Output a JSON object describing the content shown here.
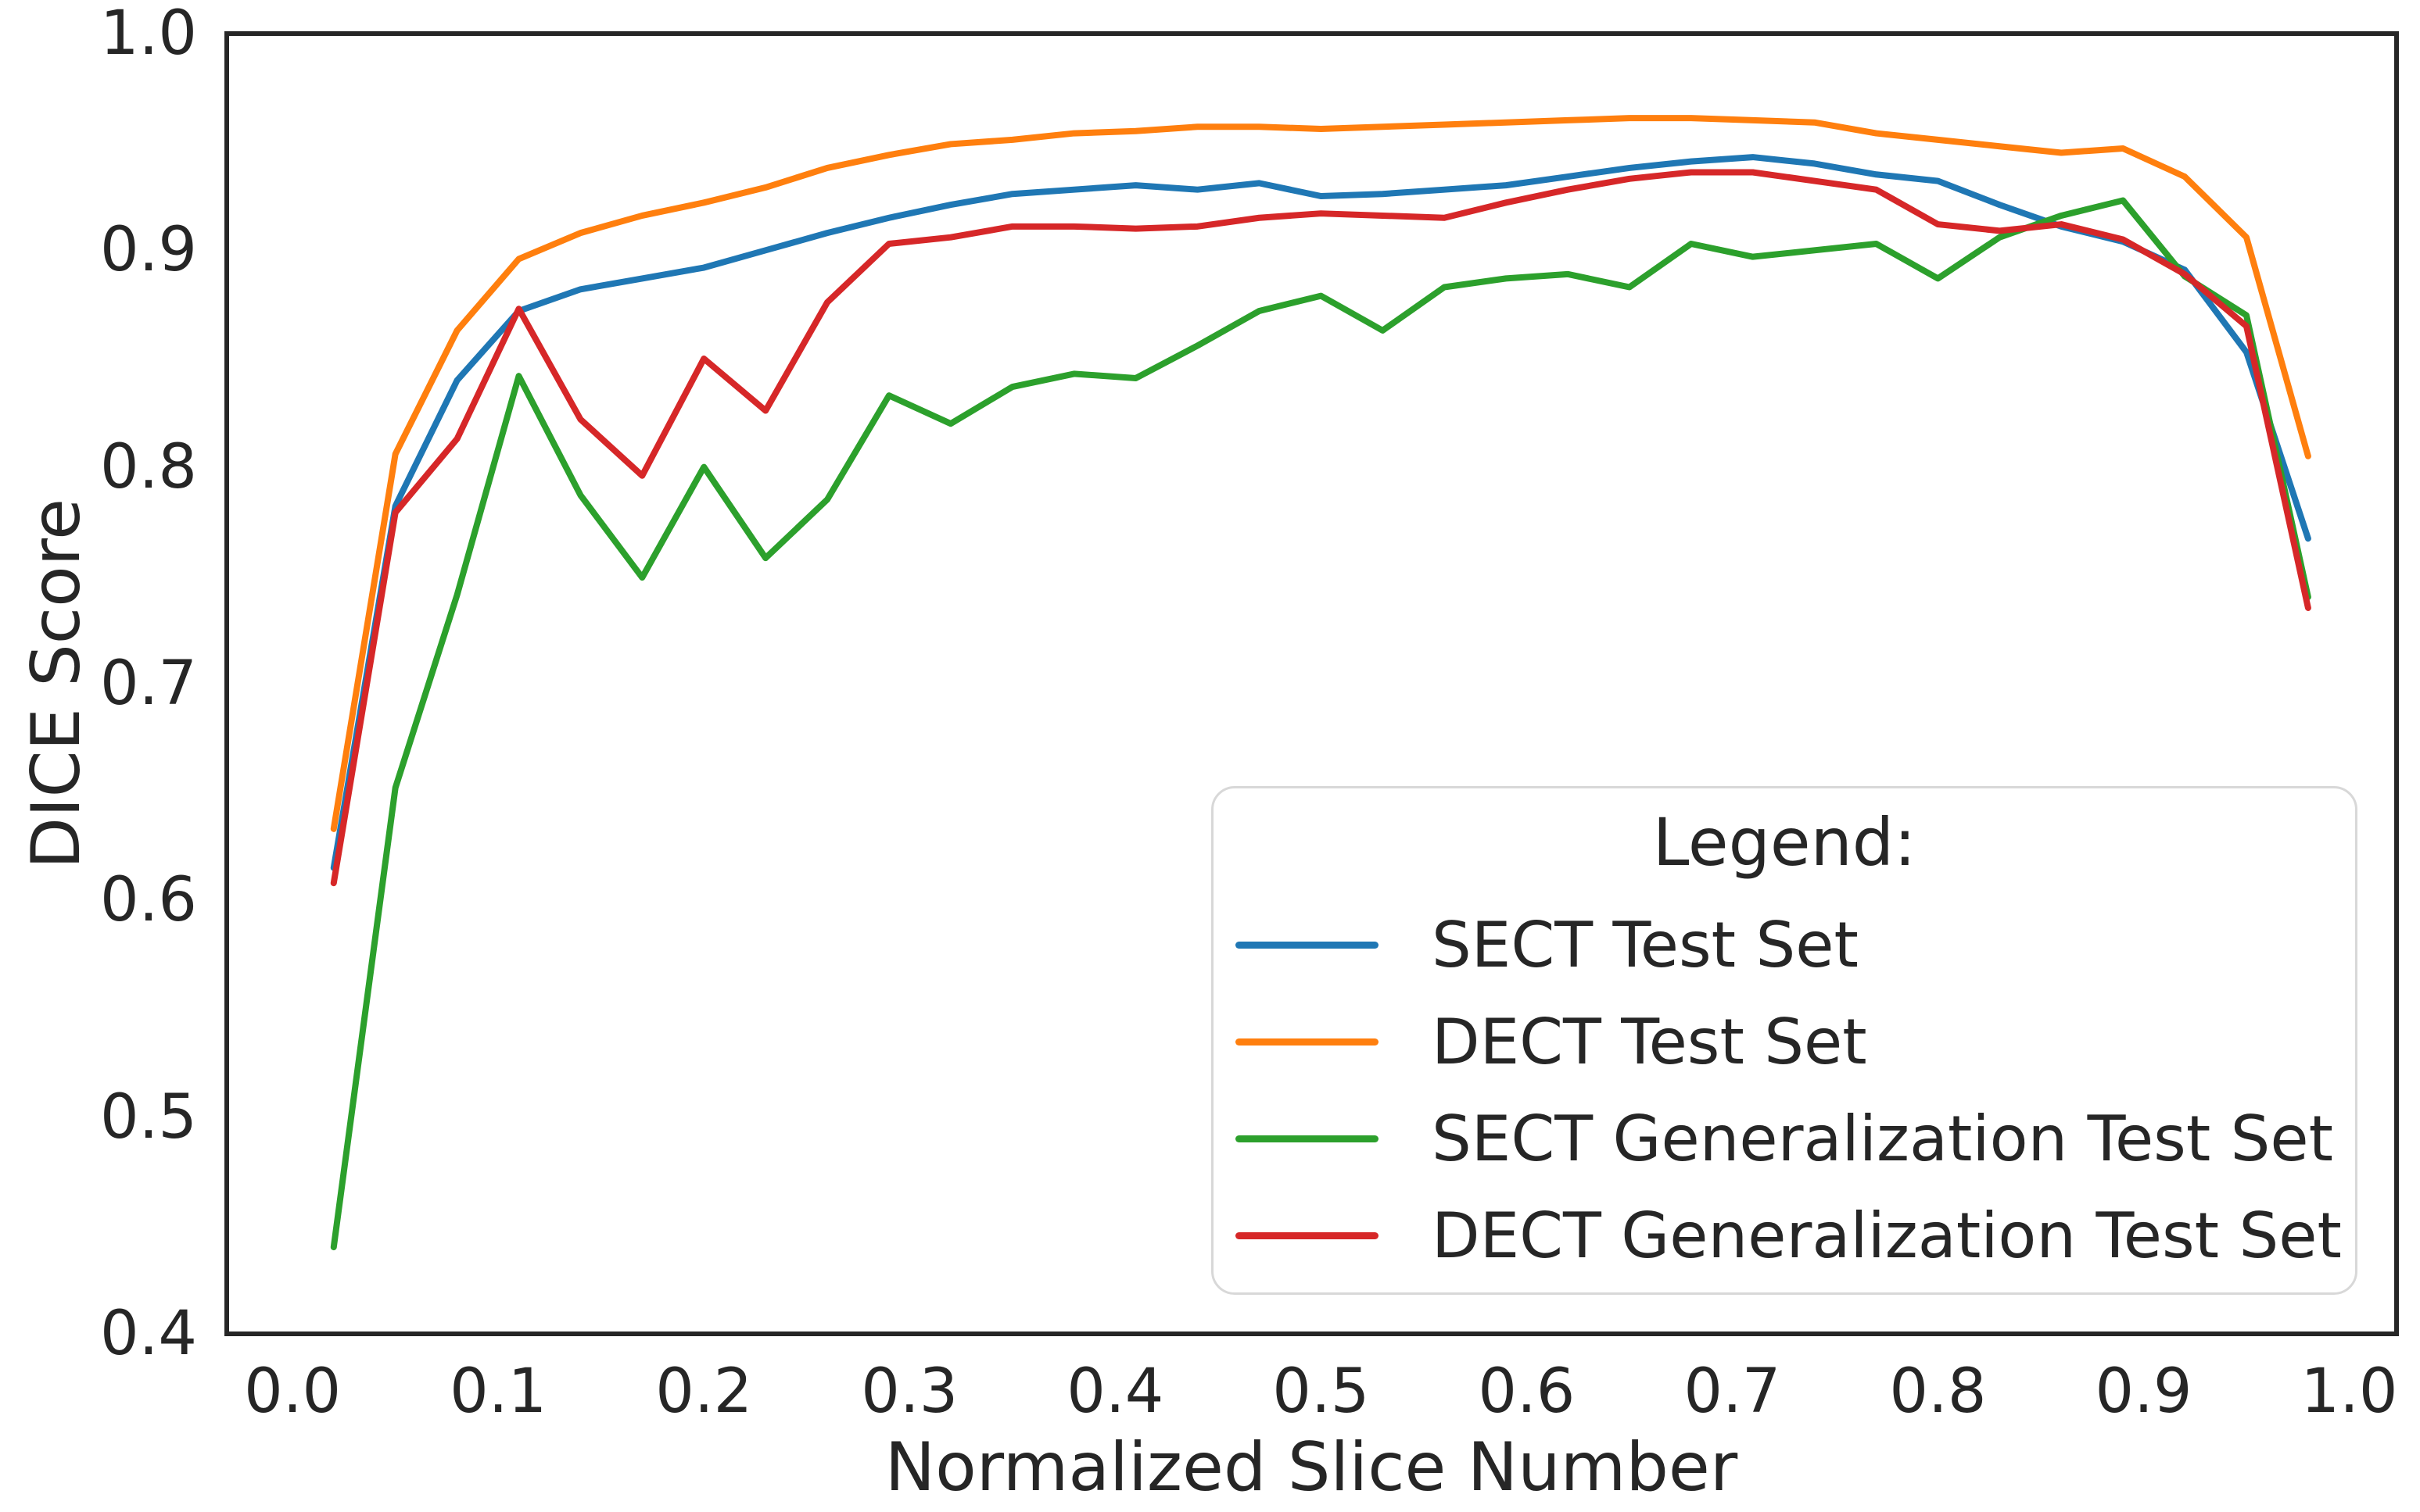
{
  "figure_title": "DICE score vs normalized slice number line chart",
  "axes": {
    "xlabel": "Normalized Slice Number",
    "ylabel": "DICE Score",
    "x_tick_labels": [
      "0.0",
      "0.1",
      "0.2",
      "0.3",
      "0.4",
      "0.5",
      "0.6",
      "0.7",
      "0.8",
      "0.9",
      "1.0"
    ],
    "y_tick_labels": [
      "0.4",
      "0.5",
      "0.6",
      "0.7",
      "0.8",
      "0.9",
      "1.0"
    ]
  },
  "legend": {
    "title": "Legend:"
  },
  "colors": {
    "sect_test": "#1f77b4",
    "dect_test": "#ff7f0e",
    "sect_generalization": "#2ca02c",
    "dect_generalization": "#d62728",
    "spine": "#262626",
    "text": "#262626",
    "legend_border": "#d8d8d8"
  },
  "chart_data": {
    "type": "line",
    "title": "",
    "xlabel": "Normalized Slice Number",
    "ylabel": "DICE Score",
    "xlim": [
      -0.032,
      1.023
    ],
    "ylim": [
      0.4,
      1.0
    ],
    "grid": false,
    "legend_position": "lower right",
    "legend_title": "Legend:",
    "x_tick_values": [
      0.0,
      0.1,
      0.2,
      0.3,
      0.4,
      0.5,
      0.6,
      0.7,
      0.8,
      0.9,
      1.0
    ],
    "y_tick_values": [
      0.4,
      0.5,
      0.6,
      0.7,
      0.8,
      0.9,
      1.0
    ],
    "x": [
      0.02,
      0.05,
      0.08,
      0.11,
      0.14,
      0.17,
      0.2,
      0.23,
      0.26,
      0.29,
      0.32,
      0.35,
      0.38,
      0.41,
      0.44,
      0.47,
      0.5,
      0.53,
      0.56,
      0.59,
      0.62,
      0.65,
      0.68,
      0.71,
      0.74,
      0.77,
      0.8,
      0.83,
      0.86,
      0.89,
      0.92,
      0.95,
      0.98
    ],
    "series": [
      {
        "name": "SECT Test Set",
        "color": "#1f77b4",
        "values": [
          0.615,
          0.782,
          0.84,
          0.872,
          0.882,
          0.887,
          0.892,
          0.9,
          0.908,
          0.915,
          0.921,
          0.926,
          0.928,
          0.93,
          0.928,
          0.931,
          0.925,
          0.926,
          0.928,
          0.93,
          0.934,
          0.938,
          0.941,
          0.943,
          0.94,
          0.935,
          0.932,
          0.921,
          0.911,
          0.904,
          0.891,
          0.853,
          0.767
        ]
      },
      {
        "name": "DECT Test Set",
        "color": "#ff7f0e",
        "values": [
          0.633,
          0.806,
          0.863,
          0.896,
          0.908,
          0.916,
          0.922,
          0.929,
          0.938,
          0.944,
          0.949,
          0.951,
          0.954,
          0.955,
          0.957,
          0.957,
          0.956,
          0.957,
          0.958,
          0.959,
          0.96,
          0.961,
          0.961,
          0.96,
          0.959,
          0.954,
          0.951,
          0.948,
          0.945,
          0.947,
          0.934,
          0.906,
          0.805
        ]
      },
      {
        "name": "SECT Generalization Test Set",
        "color": "#2ca02c",
        "values": [
          0.44,
          0.652,
          0.741,
          0.842,
          0.787,
          0.749,
          0.8,
          0.758,
          0.785,
          0.833,
          0.82,
          0.837,
          0.843,
          0.841,
          0.856,
          0.872,
          0.879,
          0.863,
          0.883,
          0.887,
          0.889,
          0.883,
          0.903,
          0.897,
          0.9,
          0.903,
          0.887,
          0.906,
          0.916,
          0.923,
          0.888,
          0.87,
          0.74
        ]
      },
      {
        "name": "DECT Generalization Test Set",
        "color": "#d62728",
        "values": [
          0.608,
          0.779,
          0.813,
          0.873,
          0.822,
          0.796,
          0.85,
          0.826,
          0.876,
          0.903,
          0.906,
          0.911,
          0.911,
          0.91,
          0.911,
          0.915,
          0.917,
          0.916,
          0.915,
          0.922,
          0.928,
          0.933,
          0.936,
          0.936,
          0.932,
          0.928,
          0.912,
          0.909,
          0.912,
          0.905,
          0.889,
          0.865,
          0.735
        ]
      }
    ]
  }
}
